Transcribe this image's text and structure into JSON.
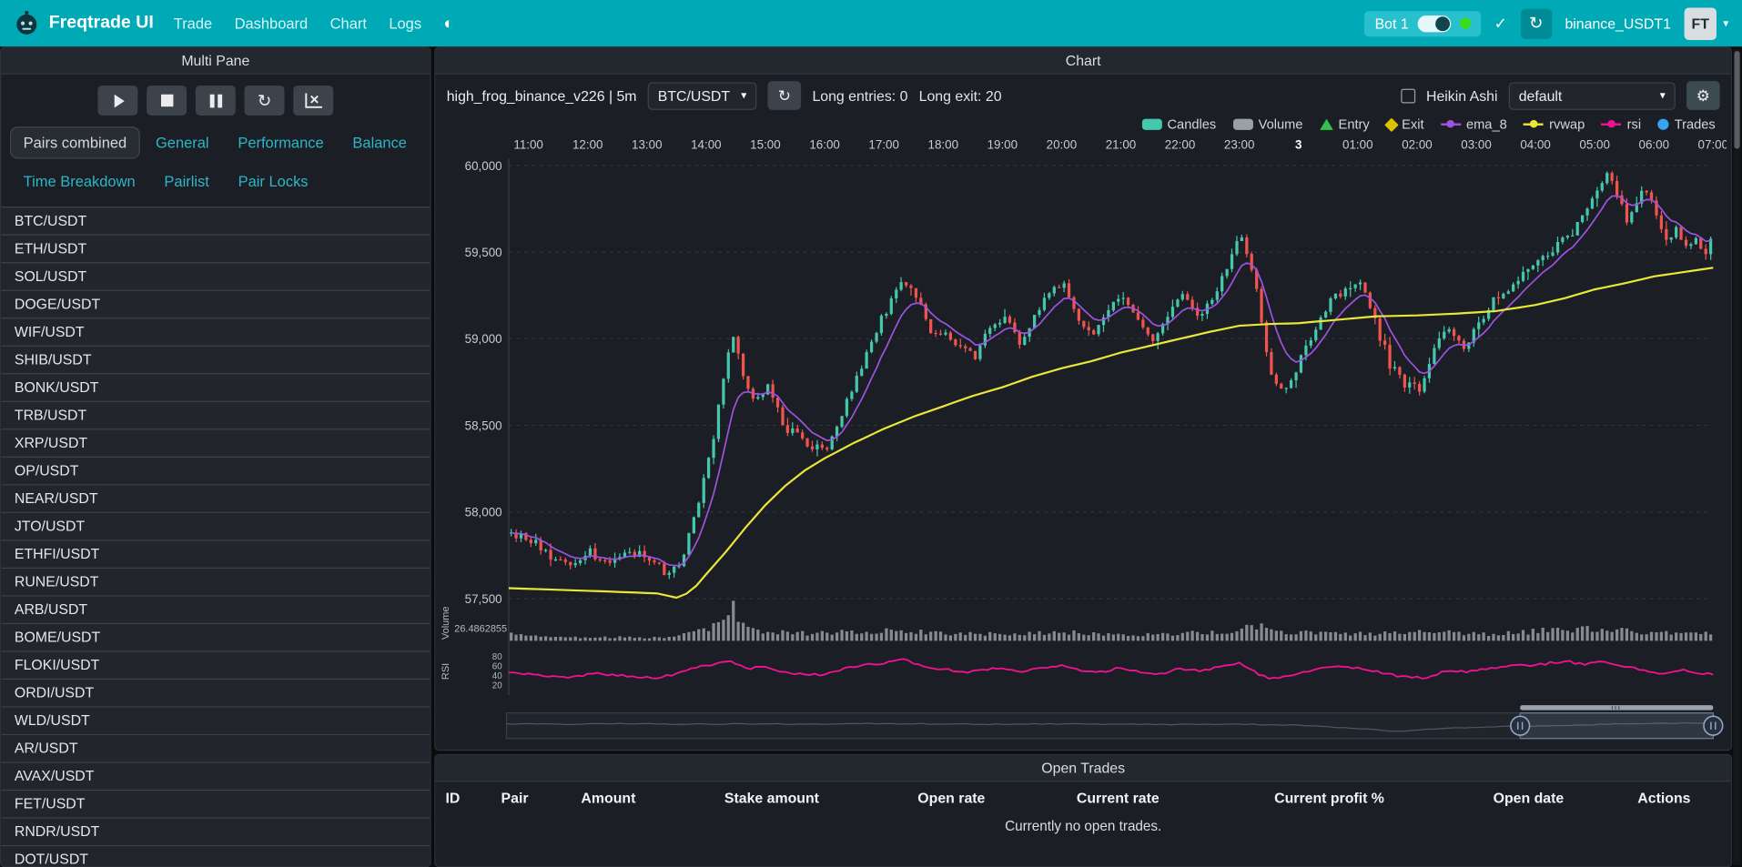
{
  "navbar": {
    "brand": "Freqtrade UI",
    "items": [
      "Trade",
      "Dashboard",
      "Chart",
      "Logs"
    ],
    "bot_label": "Bot 1",
    "exchange_label": "binance_USDT1",
    "avatar_label": "FT"
  },
  "sidebar": {
    "title": "Multi Pane",
    "tabs": [
      "Pairs combined",
      "General",
      "Performance",
      "Balance",
      "Time Breakdown",
      "Pairlist",
      "Pair Locks"
    ],
    "active_tab": "Pairs combined",
    "pairs": [
      "BTC/USDT",
      "ETH/USDT",
      "SOL/USDT",
      "DOGE/USDT",
      "WIF/USDT",
      "SHIB/USDT",
      "BONK/USDT",
      "TRB/USDT",
      "XRP/USDT",
      "OP/USDT",
      "NEAR/USDT",
      "JTO/USDT",
      "ETHFI/USDT",
      "RUNE/USDT",
      "ARB/USDT",
      "BOME/USDT",
      "FLOKI/USDT",
      "ORDI/USDT",
      "WLD/USDT",
      "AR/USDT",
      "AVAX/USDT",
      "FET/USDT",
      "RNDR/USDT",
      "DOT/USDT"
    ]
  },
  "chart": {
    "panel_title": "Chart",
    "strategy_label": "high_frog_binance_v226 | 5m",
    "pair_select_value": "BTC/USDT",
    "long_entries_label": "Long entries: 0",
    "long_exit_label": "Long exit: 20",
    "heikin_ashi_label": "Heikin Ashi",
    "plot_config_value": "default",
    "legend": [
      {
        "label": "Candles",
        "marker": "rect",
        "color": "#45c7ad"
      },
      {
        "label": "Volume",
        "marker": "rect",
        "color": "#9aa0a6"
      },
      {
        "label": "Entry",
        "marker": "triangle-up",
        "color": "#31c24d"
      },
      {
        "label": "Exit",
        "marker": "diamond",
        "color": "#d9c104"
      },
      {
        "label": "ema_8",
        "marker": "line",
        "color": "#9d52e0"
      },
      {
        "label": "rvwap",
        "marker": "line",
        "color": "#e9e738"
      },
      {
        "label": "rsi",
        "marker": "line",
        "color": "#f01390"
      },
      {
        "label": "Trades",
        "marker": "circle",
        "color": "#3aa3f0"
      }
    ]
  },
  "chart_data": {
    "type": "candlestick",
    "pair": "BTC/USDT",
    "timeframe": "5m",
    "num_candles": 244,
    "seed": 11,
    "label_start_index": 4,
    "label_step": 12,
    "x_labels": [
      {
        "t": "11:00"
      },
      {
        "t": "12:00"
      },
      {
        "t": "13:00"
      },
      {
        "t": "14:00"
      },
      {
        "t": "15:00"
      },
      {
        "t": "16:00"
      },
      {
        "t": "17:00"
      },
      {
        "t": "18:00"
      },
      {
        "t": "19:00"
      },
      {
        "t": "20:00"
      },
      {
        "t": "21:00"
      },
      {
        "t": "22:00"
      },
      {
        "t": "23:00"
      },
      {
        "t": "3",
        "bold": true
      },
      {
        "t": "01:00"
      },
      {
        "t": "02:00"
      },
      {
        "t": "03:00"
      },
      {
        "t": "04:00"
      },
      {
        "t": "05:00"
      },
      {
        "t": "06:00"
      },
      {
        "t": "07:00"
      }
    ],
    "y_ticks": [
      {
        "v": 60000,
        "label": "60,000"
      },
      {
        "v": 59500,
        "label": "59,500"
      },
      {
        "v": 59000,
        "label": "59,000"
      },
      {
        "v": 58500,
        "label": "58,500"
      },
      {
        "v": 58000,
        "label": "58,000"
      },
      {
        "v": 57500,
        "label": "57,500"
      }
    ],
    "ylim": [
      57487,
      60039
    ],
    "volume_label": "Volume",
    "volume_axis_value": "26.4862855",
    "rsi_label": "RSI",
    "rsi_ticks": [
      "80",
      "60",
      "40",
      "20"
    ],
    "zoom_window": [
      0.84,
      1.0
    ],
    "colors": {
      "up": "#45c7ad",
      "down": "#f1544e",
      "ema": "#9d52e0",
      "vwap": "#e9e738",
      "rsi": "#f01390",
      "volume": "#9a9fa4",
      "grid": "#30353b"
    },
    "close_anchors": [
      [
        0,
        57880
      ],
      [
        4,
        57840
      ],
      [
        8,
        57750
      ],
      [
        12,
        57700
      ],
      [
        16,
        57770
      ],
      [
        20,
        57700
      ],
      [
        24,
        57770
      ],
      [
        28,
        57720
      ],
      [
        31,
        57640
      ],
      [
        34,
        57700
      ],
      [
        37,
        57950
      ],
      [
        40,
        58300
      ],
      [
        43,
        58750
      ],
      [
        45,
        59020
      ],
      [
        47,
        58800
      ],
      [
        49,
        58630
      ],
      [
        52,
        58730
      ],
      [
        55,
        58500
      ],
      [
        58,
        58450
      ],
      [
        61,
        58380
      ],
      [
        64,
        58360
      ],
      [
        67,
        58570
      ],
      [
        70,
        58760
      ],
      [
        73,
        58990
      ],
      [
        76,
        59160
      ],
      [
        79,
        59330
      ],
      [
        82,
        59250
      ],
      [
        85,
        59040
      ],
      [
        88,
        59050
      ],
      [
        91,
        58940
      ],
      [
        94,
        58900
      ],
      [
        97,
        59070
      ],
      [
        100,
        59130
      ],
      [
        103,
        58970
      ],
      [
        106,
        59130
      ],
      [
        109,
        59280
      ],
      [
        112,
        59300
      ],
      [
        115,
        59110
      ],
      [
        118,
        59030
      ],
      [
        121,
        59170
      ],
      [
        124,
        59270
      ],
      [
        127,
        59100
      ],
      [
        130,
        58990
      ],
      [
        133,
        59150
      ],
      [
        136,
        59250
      ],
      [
        139,
        59140
      ],
      [
        142,
        59220
      ],
      [
        145,
        59420
      ],
      [
        148,
        59590
      ],
      [
        151,
        59280
      ],
      [
        154,
        58770
      ],
      [
        157,
        58710
      ],
      [
        160,
        58890
      ],
      [
        163,
        59070
      ],
      [
        166,
        59230
      ],
      [
        169,
        59280
      ],
      [
        172,
        59320
      ],
      [
        175,
        59090
      ],
      [
        178,
        58860
      ],
      [
        181,
        58750
      ],
      [
        184,
        58690
      ],
      [
        187,
        58960
      ],
      [
        190,
        59070
      ],
      [
        193,
        58950
      ],
      [
        196,
        59100
      ],
      [
        199,
        59210
      ],
      [
        202,
        59290
      ],
      [
        205,
        59380
      ],
      [
        208,
        59430
      ],
      [
        212,
        59530
      ],
      [
        216,
        59660
      ],
      [
        220,
        59840
      ],
      [
        222,
        59970
      ],
      [
        224,
        59860
      ],
      [
        226,
        59690
      ],
      [
        228,
        59810
      ],
      [
        230,
        59860
      ],
      [
        232,
        59710
      ],
      [
        234,
        59540
      ],
      [
        236,
        59650
      ],
      [
        238,
        59520
      ],
      [
        240,
        59570
      ],
      [
        242,
        59490
      ],
      [
        244,
        59610
      ]
    ],
    "vwap_anchors": [
      [
        0,
        57560
      ],
      [
        16,
        57545
      ],
      [
        30,
        57530
      ],
      [
        34,
        57505
      ],
      [
        37,
        57540
      ],
      [
        40,
        57640
      ],
      [
        44,
        57770
      ],
      [
        48,
        57910
      ],
      [
        52,
        58040
      ],
      [
        56,
        58150
      ],
      [
        60,
        58240
      ],
      [
        64,
        58310
      ],
      [
        70,
        58400
      ],
      [
        76,
        58480
      ],
      [
        82,
        58550
      ],
      [
        88,
        58610
      ],
      [
        94,
        58670
      ],
      [
        100,
        58720
      ],
      [
        106,
        58780
      ],
      [
        112,
        58830
      ],
      [
        118,
        58870
      ],
      [
        124,
        58920
      ],
      [
        130,
        58960
      ],
      [
        136,
        59000
      ],
      [
        142,
        59040
      ],
      [
        148,
        59075
      ],
      [
        154,
        59085
      ],
      [
        160,
        59090
      ],
      [
        168,
        59110
      ],
      [
        176,
        59130
      ],
      [
        184,
        59135
      ],
      [
        192,
        59145
      ],
      [
        200,
        59160
      ],
      [
        208,
        59195
      ],
      [
        214,
        59235
      ],
      [
        220,
        59285
      ],
      [
        226,
        59320
      ],
      [
        232,
        59360
      ],
      [
        238,
        59385
      ],
      [
        244,
        59410
      ]
    ],
    "rsi_anchors": [
      [
        0,
        48
      ],
      [
        6,
        42
      ],
      [
        12,
        38
      ],
      [
        18,
        45
      ],
      [
        24,
        40
      ],
      [
        30,
        36
      ],
      [
        34,
        44
      ],
      [
        38,
        58
      ],
      [
        42,
        66
      ],
      [
        45,
        72
      ],
      [
        48,
        55
      ],
      [
        52,
        60
      ],
      [
        56,
        48
      ],
      [
        60,
        44
      ],
      [
        64,
        42
      ],
      [
        68,
        55
      ],
      [
        72,
        62
      ],
      [
        76,
        68
      ],
      [
        80,
        74
      ],
      [
        84,
        60
      ],
      [
        88,
        55
      ],
      [
        92,
        48
      ],
      [
        96,
        52
      ],
      [
        100,
        58
      ],
      [
        104,
        50
      ],
      [
        108,
        58
      ],
      [
        112,
        62
      ],
      [
        116,
        50
      ],
      [
        120,
        48
      ],
      [
        124,
        58
      ],
      [
        128,
        48
      ],
      [
        132,
        44
      ],
      [
        136,
        56
      ],
      [
        140,
        52
      ],
      [
        144,
        58
      ],
      [
        148,
        66
      ],
      [
        152,
        44
      ],
      [
        154,
        34
      ],
      [
        158,
        40
      ],
      [
        162,
        50
      ],
      [
        166,
        58
      ],
      [
        170,
        60
      ],
      [
        174,
        54
      ],
      [
        178,
        44
      ],
      [
        182,
        38
      ],
      [
        186,
        36
      ],
      [
        190,
        52
      ],
      [
        194,
        50
      ],
      [
        198,
        56
      ],
      [
        202,
        60
      ],
      [
        206,
        62
      ],
      [
        210,
        66
      ],
      [
        214,
        72
      ],
      [
        218,
        64
      ],
      [
        222,
        70
      ],
      [
        226,
        60
      ],
      [
        230,
        52
      ],
      [
        234,
        44
      ],
      [
        238,
        52
      ],
      [
        242,
        46
      ],
      [
        244,
        44
      ]
    ],
    "volume_env": [
      [
        0,
        0.25
      ],
      [
        8,
        0.15
      ],
      [
        16,
        0.12
      ],
      [
        24,
        0.14
      ],
      [
        30,
        0.12
      ],
      [
        34,
        0.2
      ],
      [
        38,
        0.35
      ],
      [
        42,
        0.6
      ],
      [
        45,
        1.2
      ],
      [
        48,
        0.5
      ],
      [
        52,
        0.35
      ],
      [
        56,
        0.3
      ],
      [
        60,
        0.28
      ],
      [
        64,
        0.3
      ],
      [
        70,
        0.35
      ],
      [
        76,
        0.4
      ],
      [
        80,
        0.35
      ],
      [
        88,
        0.3
      ],
      [
        96,
        0.25
      ],
      [
        104,
        0.3
      ],
      [
        112,
        0.32
      ],
      [
        120,
        0.25
      ],
      [
        128,
        0.22
      ],
      [
        136,
        0.28
      ],
      [
        144,
        0.3
      ],
      [
        148,
        0.45
      ],
      [
        152,
        0.5
      ],
      [
        156,
        0.35
      ],
      [
        160,
        0.3
      ],
      [
        168,
        0.25
      ],
      [
        176,
        0.28
      ],
      [
        184,
        0.35
      ],
      [
        190,
        0.3
      ],
      [
        196,
        0.25
      ],
      [
        204,
        0.3
      ],
      [
        210,
        0.4
      ],
      [
        216,
        0.45
      ],
      [
        222,
        0.4
      ],
      [
        228,
        0.35
      ],
      [
        234,
        0.3
      ],
      [
        240,
        0.28
      ],
      [
        244,
        0.25
      ]
    ],
    "nav_line": [
      [
        0,
        0.4
      ],
      [
        0.05,
        0.42
      ],
      [
        0.1,
        0.38
      ],
      [
        0.15,
        0.42
      ],
      [
        0.2,
        0.4
      ],
      [
        0.25,
        0.42
      ],
      [
        0.3,
        0.38
      ],
      [
        0.35,
        0.4
      ],
      [
        0.4,
        0.42
      ],
      [
        0.45,
        0.4
      ],
      [
        0.5,
        0.42
      ],
      [
        0.55,
        0.44
      ],
      [
        0.6,
        0.42
      ],
      [
        0.65,
        0.46
      ],
      [
        0.68,
        0.55
      ],
      [
        0.72,
        0.72
      ],
      [
        0.74,
        0.8
      ],
      [
        0.76,
        0.7
      ],
      [
        0.78,
        0.62
      ],
      [
        0.82,
        0.55
      ],
      [
        0.86,
        0.5
      ],
      [
        0.9,
        0.44
      ],
      [
        0.94,
        0.38
      ],
      [
        1,
        0.35
      ]
    ]
  },
  "open_trades": {
    "title": "Open Trades",
    "columns": [
      "ID",
      "Pair",
      "Amount",
      "Stake amount",
      "Open rate",
      "Current rate",
      "Current profit %",
      "Open date",
      "Actions"
    ],
    "empty_text": "Currently no open trades."
  }
}
